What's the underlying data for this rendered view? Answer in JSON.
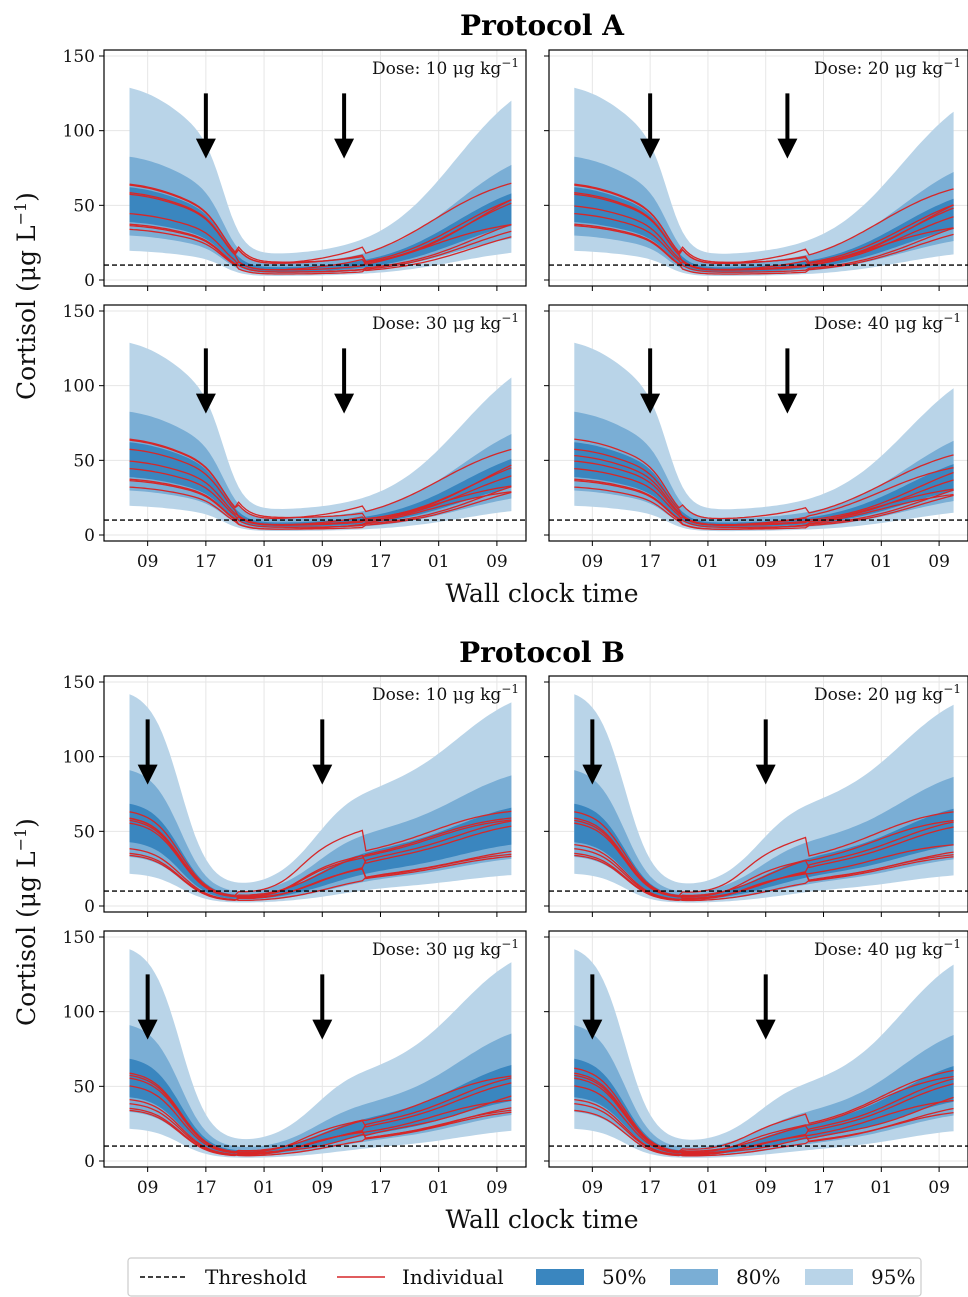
{
  "chart_data": {
    "type": "area",
    "x_tick_labels": [
      "09",
      "17",
      "01",
      "09",
      "17",
      "01",
      "09"
    ],
    "xlabel": "Wall clock time",
    "ylabel": "Cortisol (μg L",
    "ylabel_sup": "−1",
    "ylabel_close": ")",
    "y_ticks": [
      0,
      50,
      100,
      150
    ],
    "ylim": [
      0,
      150
    ],
    "xlim_hours_from_first_09": [
      -6,
      52
    ],
    "threshold": 10,
    "dose_prefix": "Dose: ",
    "dose_unit": " μg kg",
    "dose_unit_sup": "−1",
    "legend": {
      "threshold": "Threshold",
      "individual": "Individual",
      "band50": "50%",
      "band80": "80%",
      "band95": "95%"
    },
    "colors": {
      "band95": "#b9d4e8",
      "band80": "#7aaed5",
      "band50": "#3a86bf",
      "individual": "#d62728",
      "threshold": "#000000"
    },
    "protocols": [
      {
        "title": "Protocol A",
        "dose_times_hours": [
          8,
          27
        ],
        "panels": [
          {
            "dose": 10
          },
          {
            "dose": 20
          },
          {
            "dose": 30
          },
          {
            "dose": 40
          }
        ]
      },
      {
        "title": "Protocol B",
        "dose_times_hours": [
          0,
          24
        ],
        "panels": [
          {
            "dose": 10
          },
          {
            "dose": 20
          },
          {
            "dose": 30
          },
          {
            "dose": 40
          }
        ]
      }
    ]
  }
}
